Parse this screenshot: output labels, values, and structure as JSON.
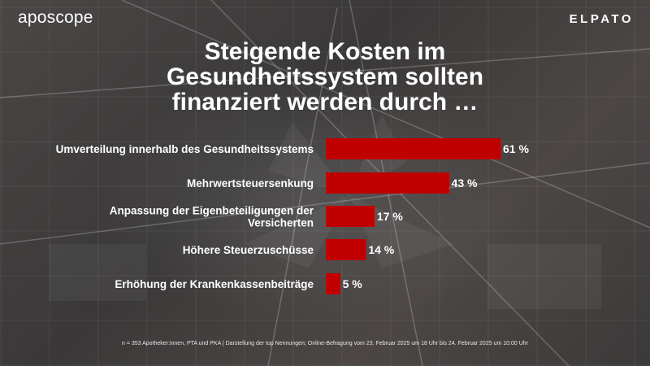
{
  "brand": {
    "left": "aposcope",
    "right": "ELPATO"
  },
  "title": {
    "line1": "Steigende Kosten im",
    "line2": "Gesundheitssystem sollten",
    "line3": "finanziert werden durch …"
  },
  "colors": {
    "bar": "#c00000",
    "text": "#ffffff"
  },
  "chart_data": {
    "type": "bar",
    "orientation": "horizontal",
    "categories": [
      [
        "Umverteilung innerhalb des Gesundheitssystems"
      ],
      [
        "Mehrwertsteuersenkung"
      ],
      [
        "Anpassung der Eigenbeteiligungen der",
        "Versicherten"
      ],
      [
        "Höhere Steuerzuschüsse"
      ],
      [
        "Erhöhung der Krankenkassenbeiträge"
      ]
    ],
    "values": [
      61,
      43,
      17,
      14,
      5
    ],
    "value_labels": [
      "61 %",
      "43 %",
      "17 %",
      "14 %",
      "5 %"
    ],
    "unit": "%",
    "xlim": [
      0,
      61
    ],
    "grid": false,
    "legend": "none"
  },
  "footnote": "n = 353 Apotheker:innen, PTA und PKA | Darstellung der top Nennungen; Online-Befragung vom 23. Februar 2025 um 18 Uhr bis 24. Februar 2025 um 10:00 Uhr"
}
